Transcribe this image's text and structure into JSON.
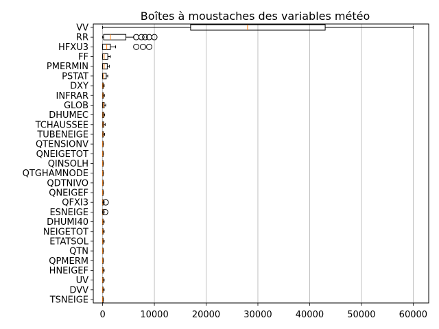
{
  "chart_data": {
    "type": "boxplot",
    "orientation": "horizontal",
    "title": "Boîtes à moustaches des variables météo",
    "xlim": [
      -1800,
      63000
    ],
    "x_ticks": [
      0,
      10000,
      20000,
      30000,
      40000,
      50000,
      60000
    ],
    "x_tick_labels": [
      "0",
      "10000",
      "20000",
      "30000",
      "40000",
      "50000",
      "60000"
    ],
    "grid_x": true,
    "box_color": "#000000",
    "median_color": "#ff7f0e",
    "grid_color": "#b0b0b0",
    "categories": [
      "VV",
      "RR",
      "HFXU3",
      "FF",
      "PMERMIN",
      "PSTAT",
      "DXY",
      "INFRAR",
      "GLOB",
      "DHUMEC",
      "TCHAUSSEE",
      "TUBENEIGE",
      "QTENSIONV",
      "QNEIGETOT",
      "QINSOLH",
      "QTGHAMNODE",
      "QDTNIVO",
      "QNEIGEF",
      "QFXI3",
      "ESNEIGE",
      "DHUMI40",
      "NEIGETOT",
      "ETATSOL",
      "QTN",
      "QPMERM",
      "HNEIGEF",
      "UV",
      "DVV",
      "TSNEIGE"
    ],
    "boxes": [
      {
        "name": "VV",
        "q1": 17000,
        "median": 28000,
        "q3": 43000,
        "whislo": 0,
        "whishi": 60000,
        "fliers": []
      },
      {
        "name": "RR",
        "q1": 200,
        "median": 1500,
        "q3": 4500,
        "whislo": 0,
        "whishi": 6000,
        "fliers": [
          6500,
          7500,
          8200,
          9000,
          10000
        ]
      },
      {
        "name": "HFXU3",
        "q1": 0,
        "median": 800,
        "q3": 1500,
        "whislo": 0,
        "whishi": 2500,
        "fliers": [
          6500,
          7800,
          9000
        ]
      },
      {
        "name": "FF",
        "q1": 0,
        "median": 300,
        "q3": 1000,
        "whislo": 0,
        "whishi": 1500,
        "fliers": []
      },
      {
        "name": "PMERMIN",
        "q1": 0,
        "median": 300,
        "q3": 900,
        "whislo": 0,
        "whishi": 1300,
        "fliers": []
      },
      {
        "name": "PSTAT",
        "q1": 0,
        "median": 200,
        "q3": 700,
        "whislo": 0,
        "whishi": 1000,
        "fliers": []
      },
      {
        "name": "DXY",
        "q1": 0,
        "median": 50,
        "q3": 150,
        "whislo": 0,
        "whishi": 300,
        "fliers": []
      },
      {
        "name": "INFRAR",
        "q1": 0,
        "median": 50,
        "q3": 150,
        "whislo": 0,
        "whishi": 350,
        "fliers": []
      },
      {
        "name": "GLOB",
        "q1": 0,
        "median": 100,
        "q3": 300,
        "whislo": 0,
        "whishi": 600,
        "fliers": []
      },
      {
        "name": "DHUMEC",
        "q1": 0,
        "median": 60,
        "q3": 200,
        "whislo": 0,
        "whishi": 400,
        "fliers": []
      },
      {
        "name": "TCHAUSSEE",
        "q1": 0,
        "median": 60,
        "q3": 200,
        "whislo": 0,
        "whishi": 500,
        "fliers": []
      },
      {
        "name": "TUBENEIGE",
        "q1": 0,
        "median": 50,
        "q3": 150,
        "whislo": 0,
        "whishi": 400,
        "fliers": []
      },
      {
        "name": "QTENSIONV",
        "q1": 0,
        "median": 20,
        "q3": 60,
        "whislo": 0,
        "whishi": 150,
        "fliers": []
      },
      {
        "name": "QNEIGETOT",
        "q1": 0,
        "median": 20,
        "q3": 60,
        "whislo": 0,
        "whishi": 150,
        "fliers": []
      },
      {
        "name": "QINSOLH",
        "q1": 0,
        "median": 20,
        "q3": 60,
        "whislo": 0,
        "whishi": 150,
        "fliers": []
      },
      {
        "name": "QTGHAMNODE",
        "q1": 0,
        "median": 20,
        "q3": 60,
        "whislo": 0,
        "whishi": 150,
        "fliers": []
      },
      {
        "name": "QDTNIVO",
        "q1": 0,
        "median": 20,
        "q3": 60,
        "whislo": 0,
        "whishi": 150,
        "fliers": []
      },
      {
        "name": "QNEIGEF",
        "q1": 0,
        "median": 20,
        "q3": 60,
        "whislo": 0,
        "whishi": 150,
        "fliers": []
      },
      {
        "name": "QFXI3",
        "q1": 0,
        "median": 30,
        "q3": 100,
        "whislo": 0,
        "whishi": 300,
        "fliers": [
          600
        ]
      },
      {
        "name": "ESNEIGE",
        "q1": 0,
        "median": 30,
        "q3": 100,
        "whislo": 0,
        "whishi": 300,
        "fliers": [
          500
        ]
      },
      {
        "name": "DHUMI40",
        "q1": 0,
        "median": 30,
        "q3": 100,
        "whislo": 0,
        "whishi": 300,
        "fliers": []
      },
      {
        "name": "NEIGETOT",
        "q1": 0,
        "median": 30,
        "q3": 100,
        "whislo": 0,
        "whishi": 300,
        "fliers": []
      },
      {
        "name": "ETATSOL",
        "q1": 0,
        "median": 30,
        "q3": 100,
        "whislo": 0,
        "whishi": 300,
        "fliers": []
      },
      {
        "name": "QTN",
        "q1": 0,
        "median": 20,
        "q3": 60,
        "whislo": 0,
        "whishi": 150,
        "fliers": []
      },
      {
        "name": "QPMERM",
        "q1": 0,
        "median": 20,
        "q3": 60,
        "whislo": 0,
        "whishi": 150,
        "fliers": []
      },
      {
        "name": "HNEIGEF",
        "q1": 0,
        "median": 30,
        "q3": 100,
        "whislo": 0,
        "whishi": 300,
        "fliers": []
      },
      {
        "name": "UV",
        "q1": 0,
        "median": 30,
        "q3": 100,
        "whislo": 0,
        "whishi": 300,
        "fliers": []
      },
      {
        "name": "DVV",
        "q1": 0,
        "median": 30,
        "q3": 100,
        "whislo": 0,
        "whishi": 300,
        "fliers": []
      },
      {
        "name": "TSNEIGE",
        "q1": 0,
        "median": 20,
        "q3": 60,
        "whislo": 0,
        "whishi": 150,
        "fliers": []
      }
    ]
  }
}
